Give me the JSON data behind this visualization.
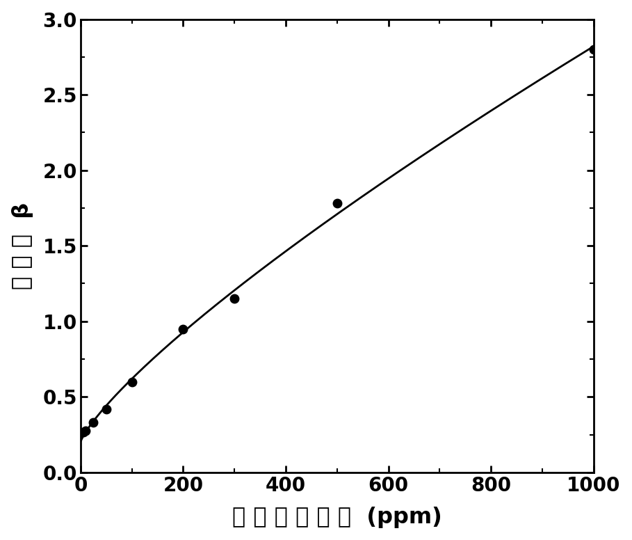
{
  "x": [
    5,
    10,
    25,
    50,
    100,
    200,
    300,
    500,
    1000
  ],
  "y": [
    0.265,
    0.275,
    0.33,
    0.42,
    0.6,
    0.95,
    1.15,
    1.78,
    2.8
  ],
  "xlabel": "甲 烧 气 体 浓 度  (ppm)",
  "ylabel": "灵 敏 度  β",
  "xlim": [
    0,
    1000
  ],
  "ylim": [
    0.0,
    3.0
  ],
  "xticks": [
    0,
    200,
    400,
    600,
    800,
    1000
  ],
  "yticks": [
    0.0,
    0.5,
    1.0,
    1.5,
    2.0,
    2.5,
    3.0
  ],
  "line_color": "#000000",
  "marker_color": "#000000",
  "marker_size": 9,
  "line_width": 2.0,
  "background_color": "#ffffff",
  "tick_fontsize": 20,
  "label_fontsize": 23
}
